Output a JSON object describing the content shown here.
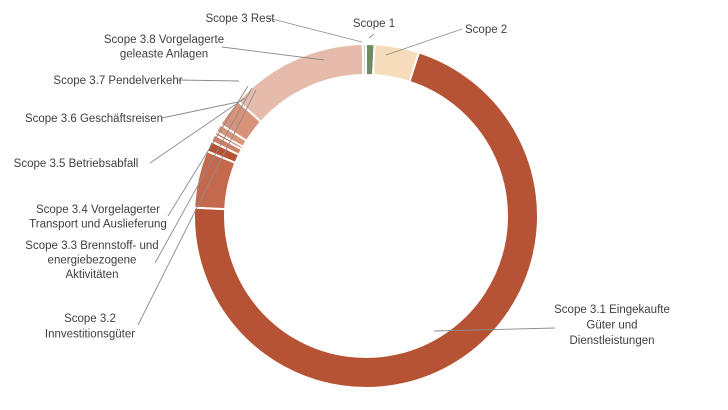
{
  "chart_data": {
    "type": "donut",
    "title": "",
    "slices": [
      {
        "label": "Scope 1",
        "value": 0.8,
        "color": "#6e8b62"
      },
      {
        "label": "Scope 2",
        "value": 4.2,
        "color": "#f7dcbc"
      },
      {
        "label": "Scope 3.1 Eingekaufte Güter und Dienstleistungen",
        "value": 71.0,
        "color": "#b55334"
      },
      {
        "label": "Scope 3.2 Innvestitionsgüter",
        "value": 5.4,
        "color": "#c4694d"
      },
      {
        "label": "Scope 3.3 Brennstoff- und energiebezogene Aktivitäten",
        "value": 1.0,
        "color": "#b55334"
      },
      {
        "label": "Scope 3.4 Vorgelagerter Transport und Auslieferung",
        "value": 0.7,
        "color": "#cf8066"
      },
      {
        "label": "Scope 3.5 Betriebsabfall",
        "value": 0.3,
        "color": "#b55334"
      },
      {
        "label": "Scope 3.6 Geschäftsreisen",
        "value": 0.8,
        "color": "#d69579"
      },
      {
        "label": "Scope 3.7 Pendelverkehr",
        "value": 2.7,
        "color": "#d8927a"
      },
      {
        "label": "Scope 3.8 Vorgelagerte geleaste Anlagen",
        "value": 13.1,
        "color": "#e5bcac"
      },
      {
        "label": "Scope 3 Rest",
        "value": 0.3,
        "color": "#ccd9c4"
      }
    ],
    "legend": "none"
  },
  "labels": [
    {
      "name": "label-scope-1",
      "lines": [
        "Scope 1"
      ]
    },
    {
      "name": "label-scope-2",
      "lines": [
        "Scope 2"
      ]
    },
    {
      "name": "label-scope-3-1",
      "lines": [
        "Scope 3.1 Eingekaufte",
        "Güter und",
        "Dienstleistungen"
      ]
    },
    {
      "name": "label-scope-3-2",
      "lines": [
        "Scope 3.2",
        "Innvestitionsgüter"
      ]
    },
    {
      "name": "label-scope-3-3",
      "lines": [
        "Scope 3.3 Brennstoff- und",
        "energiebezogene",
        "Aktivitäten"
      ]
    },
    {
      "name": "label-scope-3-4",
      "lines": [
        "Scope 3.4 Vorgelagerter",
        "Transport und Auslieferung"
      ]
    },
    {
      "name": "label-scope-3-5",
      "lines": [
        "Scope 3.5 Betriebsabfall"
      ]
    },
    {
      "name": "label-scope-3-6",
      "lines": [
        "Scope 3.6 Geschäftsreisen"
      ]
    },
    {
      "name": "label-scope-3-7",
      "lines": [
        "Scope 3.7 Pendelverkehr"
      ]
    },
    {
      "name": "label-scope-3-8",
      "lines": [
        "Scope 3.8 Vorgelagerte",
        "geleaste Anlagen"
      ]
    },
    {
      "name": "label-scope-3-rest",
      "lines": [
        "Scope 3 Rest"
      ]
    }
  ]
}
